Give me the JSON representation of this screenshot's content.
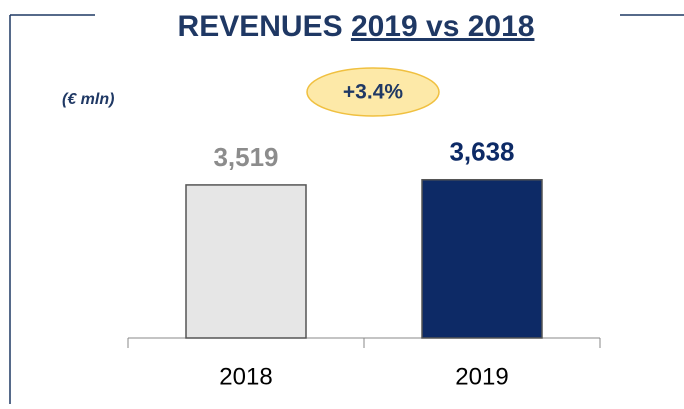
{
  "chart_data": {
    "type": "bar",
    "title": [
      "REVENUES",
      "2019 vs 2018"
    ],
    "subtitle": "(€ mln)",
    "annotation": "+3.4%",
    "categories": [
      "2018",
      "2019"
    ],
    "values": [
      3519,
      3638
    ],
    "value_labels": [
      "3,519",
      "3,638"
    ],
    "colors": [
      "#e6e6e6",
      "#0d2a66"
    ],
    "label_colors": [
      "#8c8c8c",
      "#0d2a66"
    ],
    "ylim": [
      0,
      4000
    ]
  }
}
